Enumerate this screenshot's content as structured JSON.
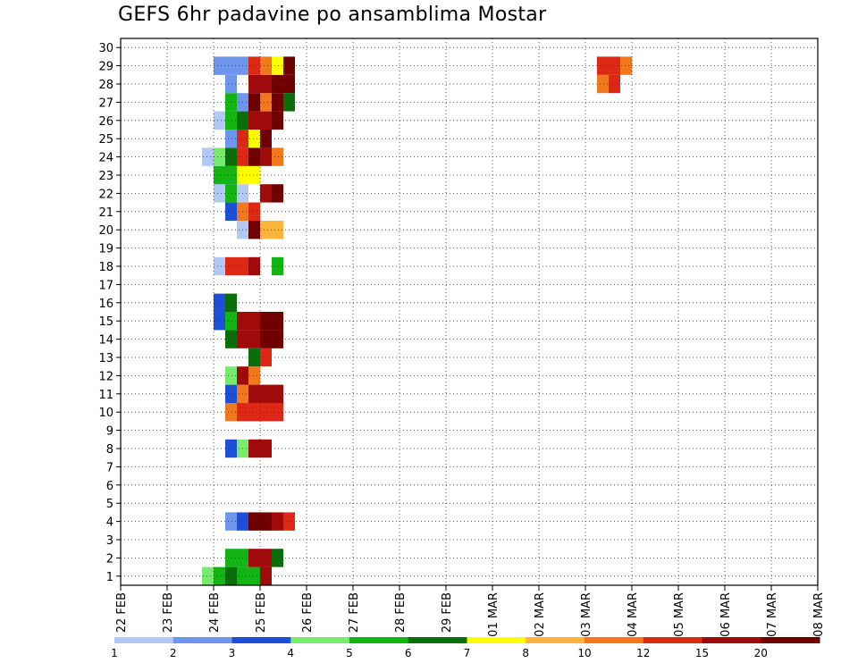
{
  "chart_data": {
    "type": "heatmap",
    "title": "GEFS 6hr padavine po ansamblima Mostar",
    "xlabel": "",
    "ylabel": "",
    "x_tick_labels": [
      "22 FEB",
      "23 FEB",
      "24 FEB",
      "25 FEB",
      "26 FEB",
      "27 FEB",
      "28 FEB",
      "29 FEB",
      "01 MAR",
      "02 MAR",
      "03 MAR",
      "04 MAR",
      "05 MAR",
      "06 MAR",
      "07 MAR",
      "08 MAR"
    ],
    "x_range_days": [
      0,
      15
    ],
    "y_tick_labels": [
      1,
      2,
      3,
      4,
      5,
      6,
      7,
      8,
      9,
      10,
      11,
      12,
      13,
      14,
      15,
      16,
      17,
      18,
      19,
      20,
      21,
      22,
      23,
      24,
      25,
      26,
      27,
      28,
      29,
      30
    ],
    "y_range": [
      0.5,
      30.5
    ],
    "steps_per_day": 4,
    "grid": "dotted",
    "colorbar": {
      "levels": [
        "1",
        "2",
        "3",
        "4",
        "5",
        "6",
        "7",
        "8",
        "10",
        "12",
        "15",
        "20"
      ],
      "colors": [
        "#b4c8f5",
        "#6e96eb",
        "#1e50d7",
        "#78eb6e",
        "#14b414",
        "#0a6e0a",
        "#ffff00",
        "#ffb43c",
        "#f0781e",
        "#dc2814",
        "#a00a0a",
        "#6e0000"
      ]
    },
    "precip_class_by_member": {
      "30": "0000000000000000000000000000000000000000000000000000000000000000",
      "29": "00000000222A97C00000000000000000000000000AA9000000000000000000000",
      "28": "00000000020BBCC000000000000000000000000009A000000000000000000000",
      "27": "00000000052C9C600000000000000000000000000000000000000000000000000",
      "26": "00000000156BBC000000000000000000000000000000000000000000000000000",
      "25": "0000000002A7C0000000000000000000000000000000000000000000000000000",
      "24": "0000000146ACB9000000000000000000000000000000000000000000000000000",
      "23": "00000000557700000000000000000000000000000000000000000000000000000",
      "22": "000000001510BC0000000000000000000000000000000000000000000000000000",
      "21": "00000000039A0000000000000000000000000000000000000000000000000000",
      "20": "00000000001C8800000000000000000000000000000000000000000000000000",
      "19": "00000000000000000000000000000000000000000000000000000000000000000",
      "18": "000000001AAB0500000000000000000000000000000000000000000000000000",
      "17": "0000000000000000000000000000000000000000000000000000000000000000",
      "16": "000000003600000000000000000000000000000000000000000000000000000",
      "15": "0000000035BBCC000000000000000000000000000000000000000000000000000",
      "14": "0000000006BBCC00000000000000000000000000000000000000000000000000",
      "13": "000000000006A00000000000000000000000000000000000000000000000000",
      "12": "0000000004B90000000000000000000000000000000000000000000000000000",
      "11": "00000000039BBB00000000000000000000000000000000000000000000000000",
      "10": "0000000009AAAA00000000000000000000000000000000000000000000000000",
      "9": "0000000000000000000000000000000000000000000000000000000000000000",
      "8": "00000000034BB0000000000000000000000000000000000000000000000000000",
      "7": "0000000000000000000000000000000000000000000000000000000000000000",
      "6": "0000000000000000000000000000000000000000000000000000000000000000",
      "5": "0000000000000000000000000000000000000000000000000000000000000000",
      "4": "00000000023CCBA00000000000000000000000000000000000000000000000000",
      "3": "0000000000000000000000000000000000000000000000000000000000000000",
      "2": "00000000055BB6000000000000000000000000000000000000000000000000000",
      "1": "000000045655B00000000000000000000000000000000000000000000000000000"
    }
  }
}
